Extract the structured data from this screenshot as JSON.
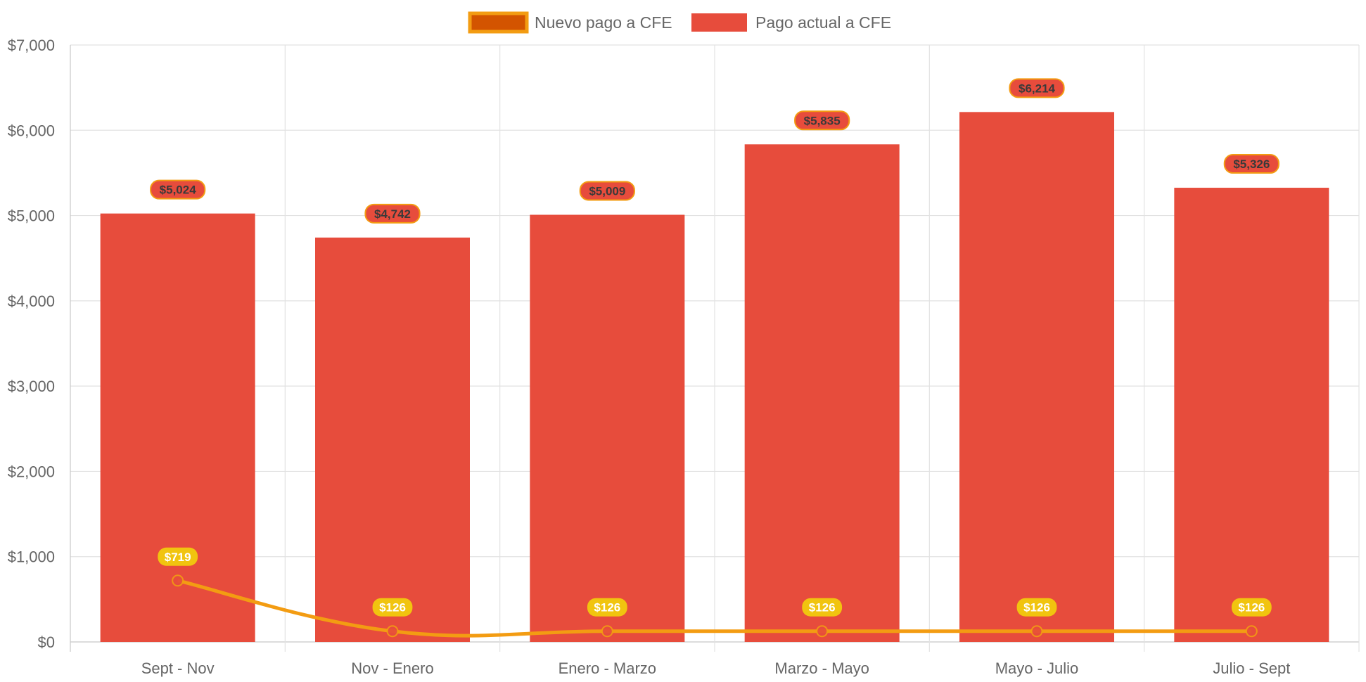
{
  "chart_data": {
    "type": "bar",
    "categories": [
      "Sept - Nov",
      "Nov - Enero",
      "Enero - Marzo",
      "Marzo - Mayo",
      "Mayo - Julio",
      "Julio - Sept"
    ],
    "series": [
      {
        "name": "Nuevo pago a CFE",
        "type": "line",
        "values": [
          719,
          126,
          126,
          126,
          126,
          126
        ],
        "labels": [
          "$719",
          "$126",
          "$126",
          "$126",
          "$126",
          "$126"
        ],
        "color": "#f39c12",
        "point_color": "#e74c3c",
        "label_bg": "#f1c40f",
        "legend_fill": "#d35400",
        "legend_border": "#f39c12"
      },
      {
        "name": "Pago actual a CFE",
        "type": "bar",
        "values": [
          5024,
          4742,
          5009,
          5835,
          6214,
          5326
        ],
        "labels": [
          "$5,024",
          "$4,742",
          "$5,009",
          "$5,835",
          "$6,214",
          "$5,326"
        ],
        "color": "#e74c3c",
        "label_bg": "#e74c3c",
        "label_border": "#f39c12"
      }
    ],
    "ylim": [
      0,
      7000
    ],
    "yticks": [
      0,
      1000,
      2000,
      3000,
      4000,
      5000,
      6000,
      7000
    ],
    "ytick_labels": [
      "$0",
      "$1,000",
      "$2,000",
      "$3,000",
      "$4,000",
      "$5,000",
      "$6,000",
      "$7,000"
    ],
    "grid": true,
    "legend_position": "top-center",
    "title": "",
    "xlabel": "",
    "ylabel": ""
  }
}
